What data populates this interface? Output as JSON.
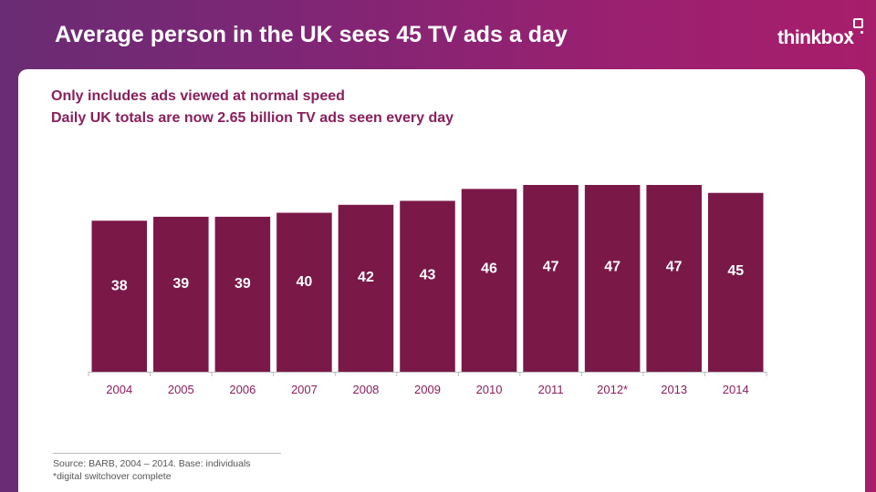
{
  "header": {
    "title": "Average person in the UK sees 45 TV ads a day",
    "logo_text": "thinkbox"
  },
  "subtitles": {
    "line1": "Only includes ads viewed at normal speed",
    "line2": "Daily UK totals are now 2.65 billion TV ads seen every day"
  },
  "footer": {
    "source": "Source: BARB, 2004 – 2014.  Base: individuals",
    "note": "*digital switchover complete"
  },
  "colors": {
    "bar": "#7a1848",
    "bar_label": "#ffffff",
    "tick_label": "#8a1f5c",
    "axis": "#bbbbbb"
  },
  "chart_data": {
    "type": "bar",
    "categories": [
      "2004",
      "2005",
      "2006",
      "2007",
      "2008",
      "2009",
      "2010",
      "2011",
      "2012*",
      "2013",
      "2014"
    ],
    "values": [
      38,
      39,
      39,
      40,
      42,
      43,
      46,
      47,
      47,
      47,
      45
    ],
    "title": "",
    "xlabel": "",
    "ylabel": "",
    "data_labels": true,
    "grid": false,
    "legend": "none"
  }
}
